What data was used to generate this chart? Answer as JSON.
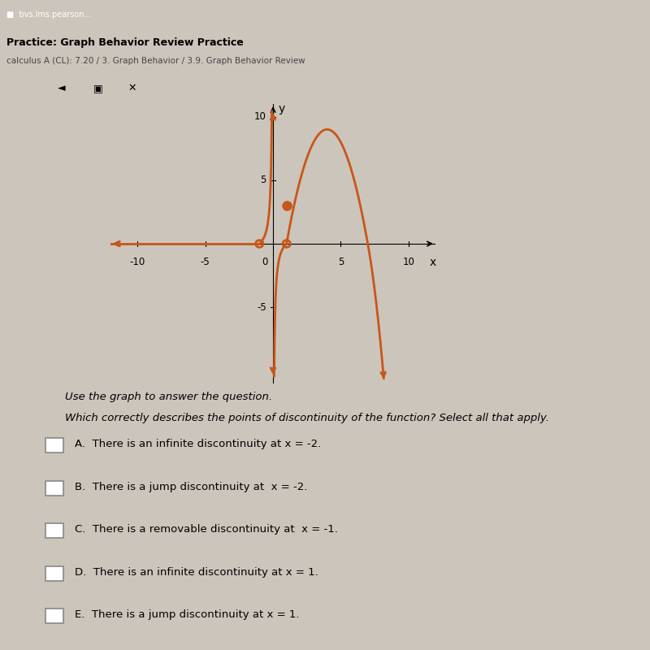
{
  "bg_color": "#ccc5bb",
  "graph_bg": "#ccc5bb",
  "curve_color": "#c8561a",
  "xlim": [
    -12,
    12
  ],
  "ylim": [
    -11,
    11
  ],
  "xtick_vals": [
    -10,
    -5,
    5,
    10
  ],
  "ytick_vals": [
    -5,
    5,
    10
  ],
  "xlabel": "x",
  "ylabel": "y",
  "open_circles": [
    [
      -1,
      0
    ],
    [
      1,
      0
    ]
  ],
  "filled_dot": [
    1,
    3
  ],
  "question_line1": "Use the graph to answer the question.",
  "question_line2": "Which correctly describes the points of discontinuity of the function? Select all that apply.",
  "options": [
    "A.  There is an infinite discontinuity at x = -2.",
    "B.  There is a jump discontinuity at  x = -2.",
    "C.  There is a removable discontinuity at  x = -1.",
    "D.  There is an infinite discontinuity at x = 1.",
    "E.  There is a jump discontinuity at x = 1."
  ],
  "header_title": "Practice: Graph Behavior Review Practice",
  "header_sub": "calculus A (CL): 7.20 / 3. Graph Behavior / 3.9. Graph Behavior Review",
  "browser_bar_color": "#4a90d9",
  "toolbar_color": "#e8e8e8"
}
